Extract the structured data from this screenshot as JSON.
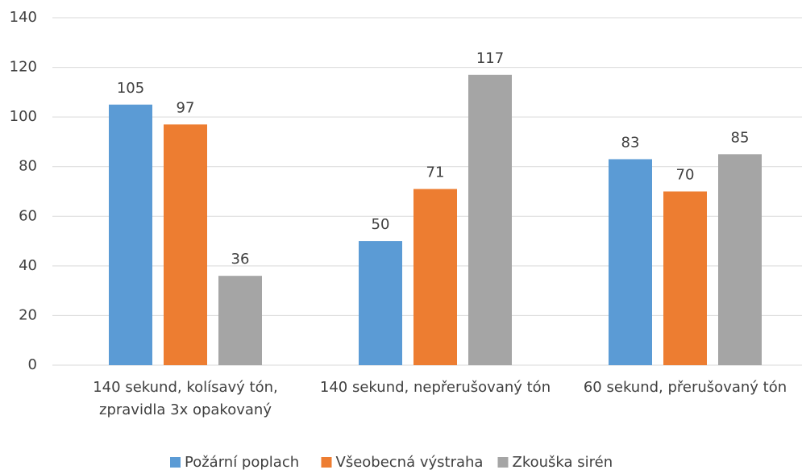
{
  "chart_data": {
    "type": "bar",
    "categories": [
      "140 sekund, kolísavý tón, zpravidla 3x opakovaný",
      "140 sekund, nepřerušovaný tón",
      "60 sekund, přerušovaný tón"
    ],
    "series": [
      {
        "name": "Požární poplach",
        "color": "#5b9bd5",
        "values": [
          105,
          50,
          83
        ]
      },
      {
        "name": "Všeobecná výstraha",
        "color": "#ed7d31",
        "values": [
          97,
          71,
          70
        ]
      },
      {
        "name": "Zkouška sirén",
        "color": "#a5a5a5",
        "values": [
          36,
          117,
          85
        ]
      }
    ],
    "ylim": [
      0,
      140
    ],
    "yticks": [
      0,
      20,
      40,
      60,
      80,
      100,
      120,
      140
    ],
    "grid": true,
    "legend": "bottom"
  }
}
